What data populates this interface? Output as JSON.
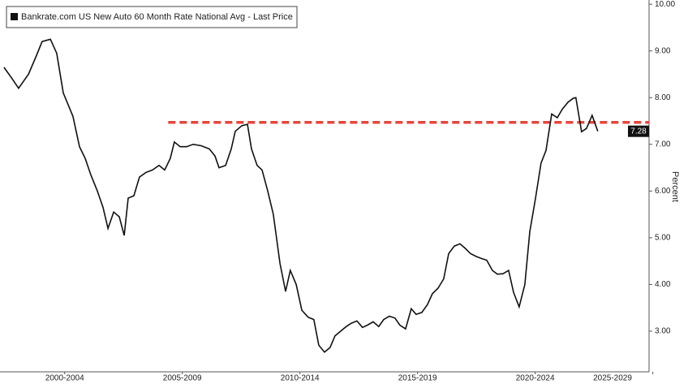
{
  "chart_data": {
    "type": "line",
    "legend_label": "Bankrate.com US New Auto 60 Month Rate National Avg - Last Price",
    "y_axis_label": "Percent",
    "series": [
      {
        "name": "Bankrate.com US New Auto 60 Month Rate National Avg - Last Price",
        "color": "#111111",
        "x": [
          1999.92,
          2000.27,
          2000.54,
          2000.96,
          2001.3,
          2001.54,
          2001.89,
          2002.16,
          2002.44,
          2002.85,
          2003.13,
          2003.37,
          2003.61,
          2003.89,
          2004.13,
          2004.34,
          2004.58,
          2004.82,
          2005.03,
          2005.2,
          2005.44,
          2005.68,
          2005.96,
          2006.23,
          2006.51,
          2006.75,
          2006.99,
          2007.16,
          2007.41,
          2007.68,
          2007.96,
          2008.3,
          2008.65,
          2008.89,
          2009.06,
          2009.34,
          2009.58,
          2009.75,
          2010.03,
          2010.27,
          2010.44,
          2010.68,
          2010.89,
          2011.13,
          2011.37,
          2011.65,
          2011.89,
          2012.09,
          2012.34,
          2012.58,
          2012.85,
          2013.09,
          2013.3,
          2013.54,
          2013.78,
          2013.99,
          2014.23,
          2014.47,
          2014.68,
          2014.92,
          2015.16,
          2015.37,
          2015.61,
          2015.85,
          2016.06,
          2016.3,
          2016.54,
          2016.75,
          2016.99,
          2017.23,
          2017.44,
          2017.68,
          2017.92,
          2018.13,
          2018.37,
          2018.61,
          2018.82,
          2019.06,
          2019.3,
          2019.51,
          2019.75,
          2019.99,
          2020.2,
          2020.44,
          2020.68,
          2020.89,
          2021.13,
          2021.37,
          2021.58,
          2021.82,
          2022.06,
          2022.27,
          2022.51,
          2022.75,
          2022.96,
          2023.2,
          2023.44,
          2023.65,
          2023.89,
          2024.13,
          2024.23,
          2024.47,
          2024.68,
          2024.92,
          2025.16
        ],
        "values": [
          8.65,
          8.4,
          8.2,
          8.5,
          8.9,
          9.2,
          9.25,
          8.95,
          8.1,
          7.6,
          6.95,
          6.7,
          6.35,
          6.0,
          5.65,
          5.2,
          5.55,
          5.45,
          5.05,
          5.85,
          5.9,
          6.3,
          6.4,
          6.45,
          6.55,
          6.45,
          6.7,
          7.05,
          6.95,
          6.95,
          7.0,
          6.97,
          6.9,
          6.75,
          6.5,
          6.55,
          6.9,
          7.28,
          7.4,
          7.43,
          6.9,
          6.55,
          6.45,
          6.0,
          5.5,
          4.45,
          3.85,
          4.3,
          4.0,
          3.45,
          3.3,
          3.25,
          2.7,
          2.55,
          2.65,
          2.9,
          3.0,
          3.1,
          3.17,
          3.22,
          3.08,
          3.13,
          3.2,
          3.1,
          3.25,
          3.32,
          3.28,
          3.13,
          3.05,
          3.48,
          3.36,
          3.4,
          3.57,
          3.8,
          3.92,
          4.12,
          4.66,
          4.82,
          4.87,
          4.78,
          4.66,
          4.6,
          4.56,
          4.52,
          4.3,
          4.22,
          4.23,
          4.3,
          3.83,
          3.52,
          4.0,
          5.13,
          5.83,
          6.6,
          6.87,
          7.65,
          7.57,
          7.75,
          7.9,
          7.99,
          8.0,
          7.27,
          7.34,
          7.62,
          7.28
        ]
      }
    ],
    "reference_line": {
      "value": 7.47,
      "from": 2006.9,
      "color": "#e8463a"
    },
    "xlim": [
      1999.75,
      2027.34
    ],
    "xticks": [
      {
        "value": 2002.5,
        "label": "2000-2004"
      },
      {
        "value": 2007.5,
        "label": "2005-2009"
      },
      {
        "value": 2012.5,
        "label": "2010-2014"
      },
      {
        "value": 2017.5,
        "label": "2015-2019"
      },
      {
        "value": 2022.5,
        "label": "2020-2024"
      },
      {
        "value": 2027.5,
        "label": "2025-2029"
      }
    ],
    "ylim": [
      2.13,
      10.09
    ],
    "yticks": [
      {
        "value": 3,
        "label": "3.00"
      },
      {
        "value": 4,
        "label": "4.00"
      },
      {
        "value": 5,
        "label": "5.00"
      },
      {
        "value": 6,
        "label": "6.00"
      },
      {
        "value": 7,
        "label": "7.00"
      },
      {
        "value": 8,
        "label": "8.00"
      },
      {
        "value": 9,
        "label": "9.00"
      },
      {
        "value": 10,
        "label": "10.00"
      }
    ]
  }
}
